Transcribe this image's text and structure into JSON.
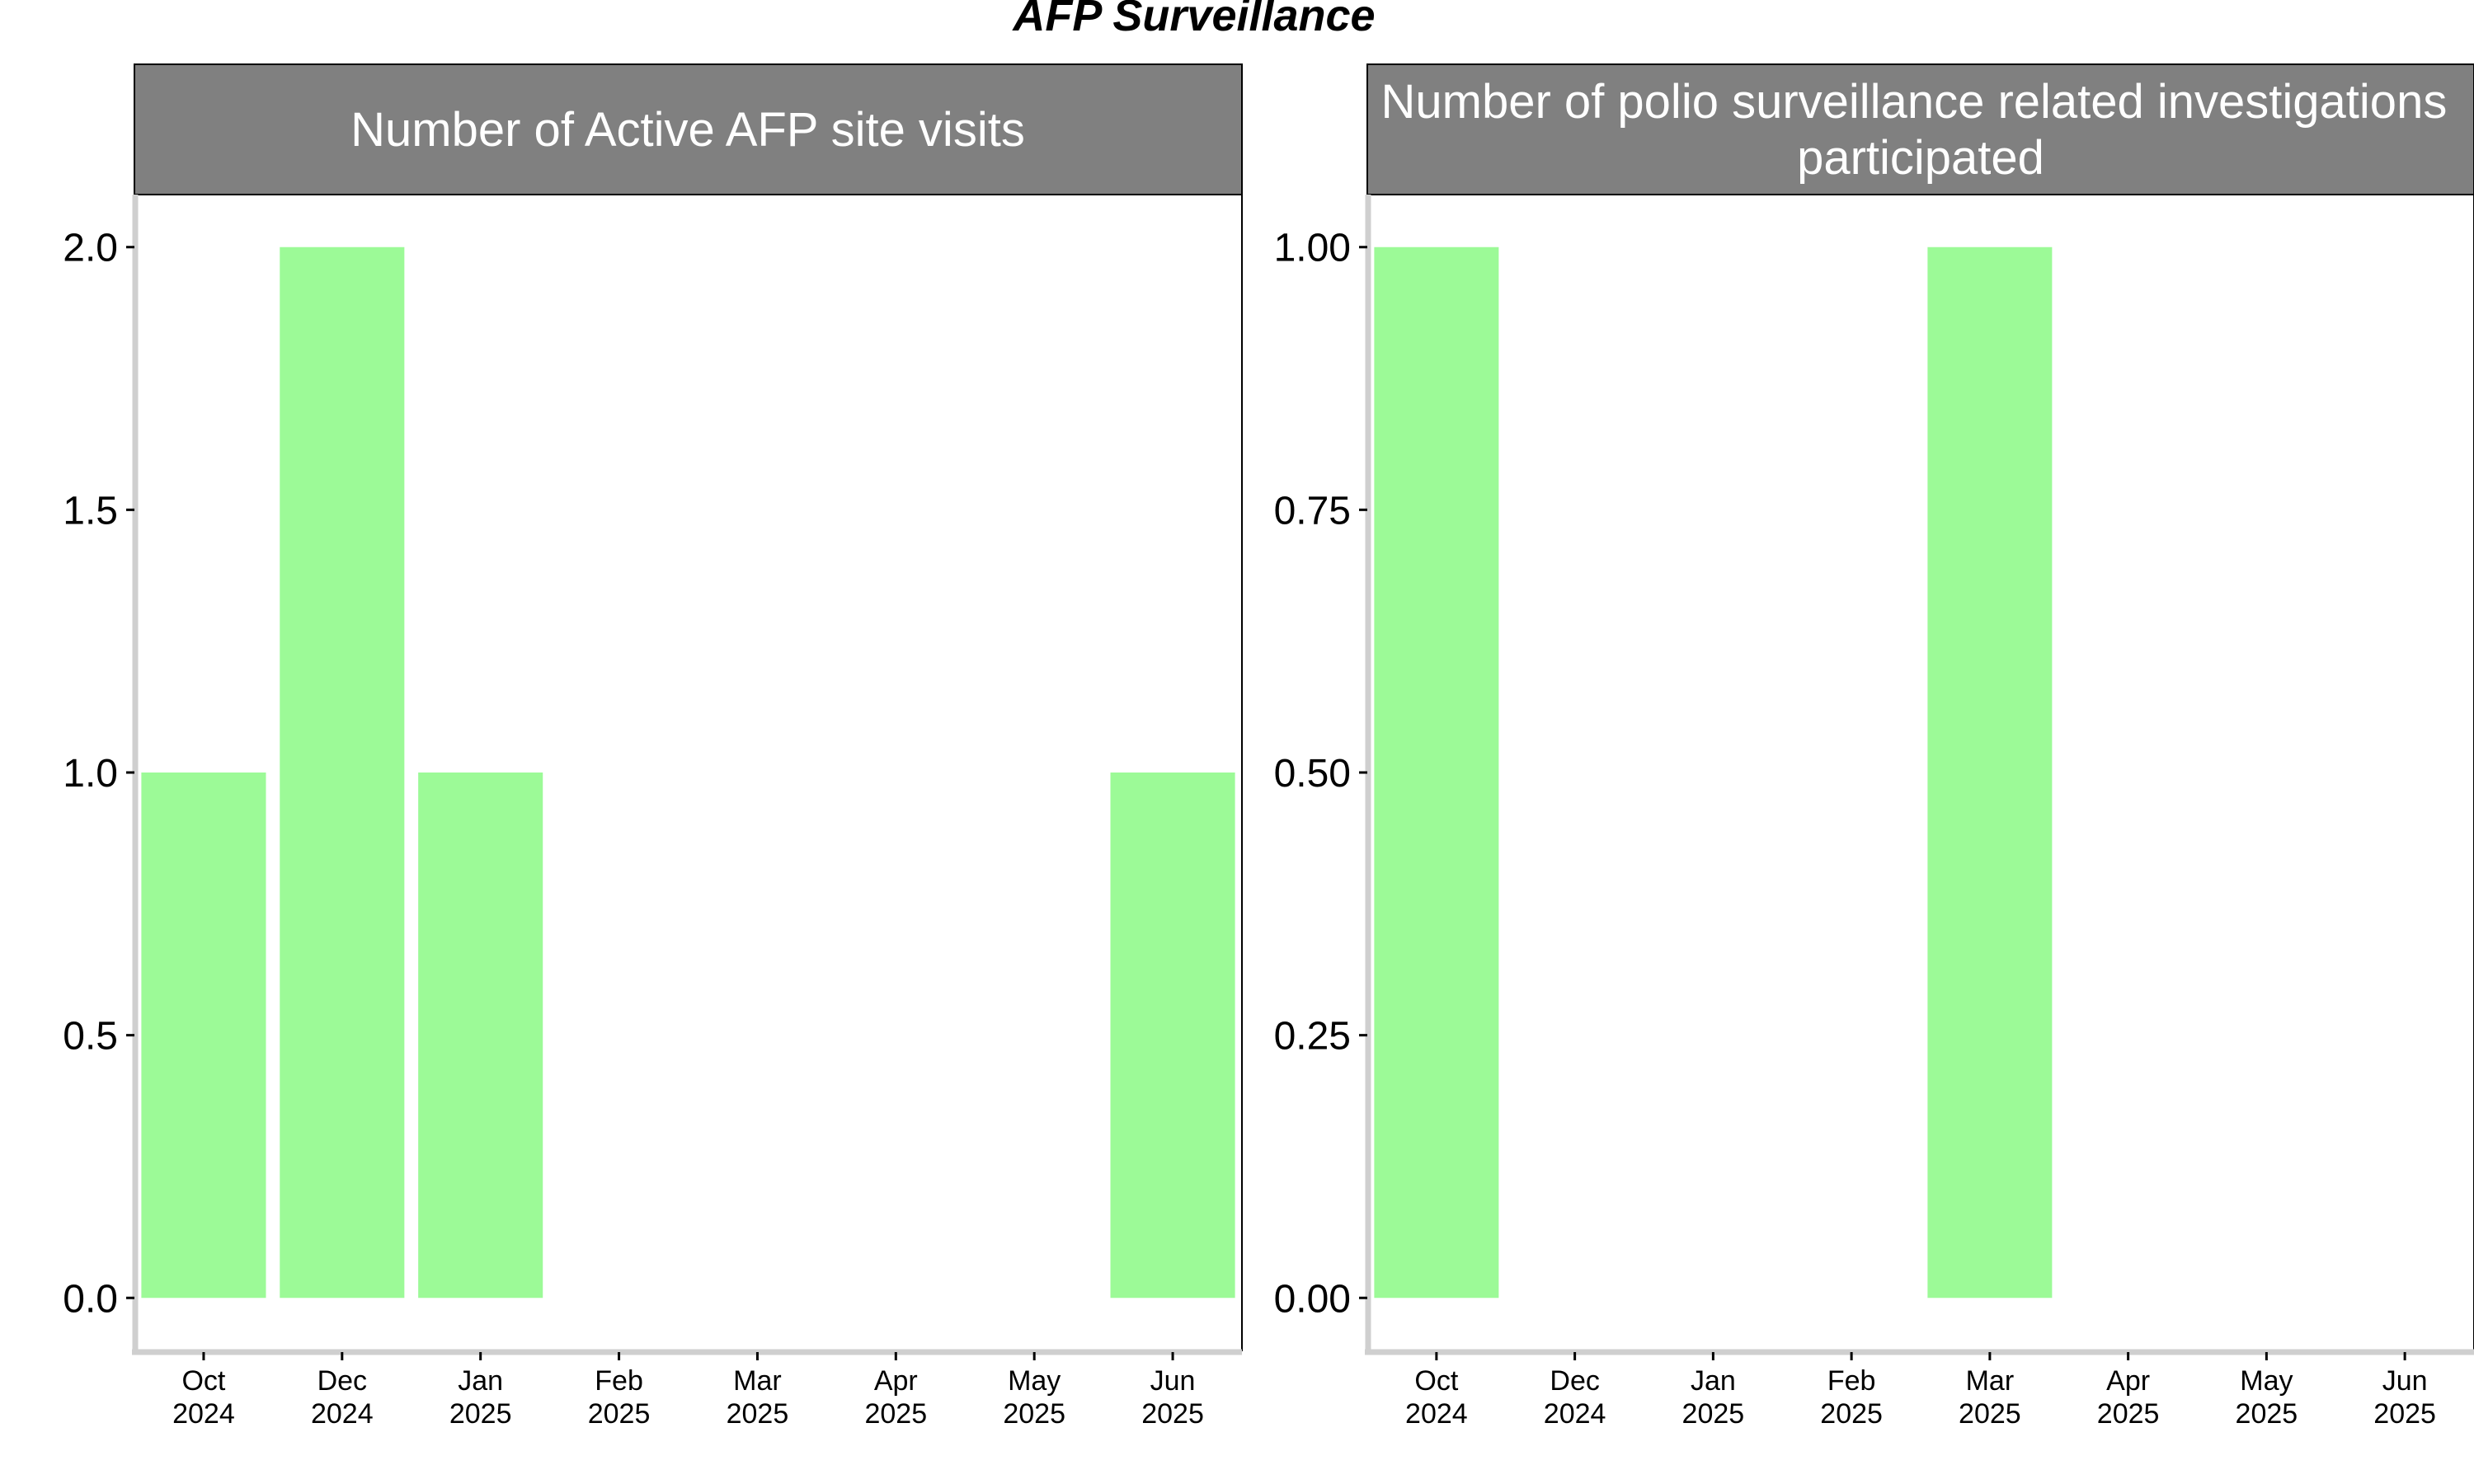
{
  "title": "AFP Surveillance",
  "colors": {
    "bar": "#9cfa97",
    "strip": "#808080",
    "strip_text": "#ffffff",
    "axis_line": "#cfcfcf",
    "panel_border": "#000000"
  },
  "chart_data": [
    {
      "type": "bar",
      "strip_title": [
        "Number of Active AFP site visits"
      ],
      "categories": [
        "Oct 2024",
        "Dec 2024",
        "Jan 2025",
        "Feb 2025",
        "Mar 2025",
        "Apr 2025",
        "May 2025",
        "Jun 2025"
      ],
      "x_tick_labels": [
        [
          "Oct",
          "2024"
        ],
        [
          "Dec",
          "2024"
        ],
        [
          "Jan",
          "2025"
        ],
        [
          "Feb",
          "2025"
        ],
        [
          "Mar",
          "2025"
        ],
        [
          "Apr",
          "2025"
        ],
        [
          "May",
          "2025"
        ],
        [
          "Jun",
          "2025"
        ]
      ],
      "values": [
        1,
        2,
        1,
        null,
        null,
        null,
        null,
        1
      ],
      "y_ticks": [
        "0.0",
        "0.5",
        "1.0",
        "1.5",
        "2.0"
      ],
      "y_tick_values": [
        0,
        0.5,
        1,
        1.5,
        2
      ],
      "ylim": [
        -0.1,
        2.1
      ],
      "xlabel": "",
      "ylabel": "",
      "grid": false,
      "legend": "none"
    },
    {
      "type": "bar",
      "strip_title": [
        "Number of polio surveillance related investigations",
        "participated"
      ],
      "categories": [
        "Oct 2024",
        "Dec 2024",
        "Jan 2025",
        "Feb 2025",
        "Mar 2025",
        "Apr 2025",
        "May 2025",
        "Jun 2025"
      ],
      "x_tick_labels": [
        [
          "Oct",
          "2024"
        ],
        [
          "Dec",
          "2024"
        ],
        [
          "Jan",
          "2025"
        ],
        [
          "Feb",
          "2025"
        ],
        [
          "Mar",
          "2025"
        ],
        [
          "Apr",
          "2025"
        ],
        [
          "May",
          "2025"
        ],
        [
          "Jun",
          "2025"
        ]
      ],
      "values": [
        1,
        null,
        null,
        null,
        1,
        null,
        null,
        null
      ],
      "y_ticks": [
        "0.00",
        "0.25",
        "0.50",
        "0.75",
        "1.00"
      ],
      "y_tick_values": [
        0,
        0.25,
        0.5,
        0.75,
        1
      ],
      "ylim": [
        -0.05,
        1.05
      ],
      "xlabel": "",
      "ylabel": "",
      "grid": false,
      "legend": "none"
    }
  ]
}
